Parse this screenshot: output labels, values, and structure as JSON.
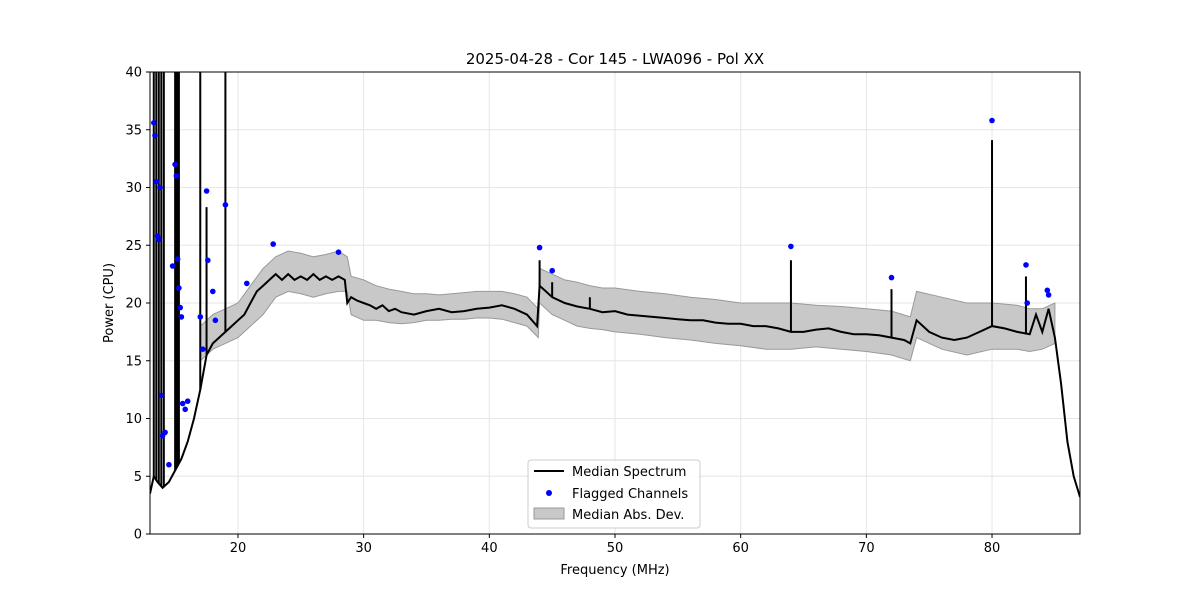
{
  "chart_data": {
    "type": "line",
    "title": "2025-04-28 - Cor 145 - LWA096 - Pol XX",
    "xlabel": "Frequency (MHz)",
    "ylabel": "Power (CPU)",
    "xlim": [
      13,
      87
    ],
    "ylim": [
      0,
      40
    ],
    "xticks": [
      "20",
      "30",
      "40",
      "50",
      "60",
      "70",
      "80"
    ],
    "yticks": [
      "0",
      "5",
      "10",
      "15",
      "20",
      "25",
      "30",
      "35",
      "40"
    ],
    "grid": true,
    "legend_position": "bottom-center",
    "colors": {
      "median": "#000000",
      "flagged": "#0000ff",
      "mad_fill": "#c8c8c8",
      "mad_edge": "#999999",
      "grid": "#e6e6e6"
    },
    "series": [
      {
        "name": "Median Spectrum",
        "kind": "line",
        "x": [
          13.0,
          13.3,
          13.6,
          14.0,
          14.5,
          15.0,
          15.5,
          16.0,
          16.5,
          17.0,
          17.5,
          18.0,
          18.5,
          19.0,
          19.5,
          20.0,
          20.5,
          21.0,
          21.5,
          22.0,
          22.5,
          23.0,
          23.5,
          24.0,
          24.5,
          25.0,
          25.5,
          26.0,
          26.5,
          27.0,
          27.5,
          28.0,
          28.5,
          28.7,
          29.0,
          29.5,
          30.0,
          30.5,
          31.0,
          31.5,
          32.0,
          32.5,
          33.0,
          34.0,
          35.0,
          36.0,
          37.0,
          38.0,
          39.0,
          40.0,
          41.0,
          42.0,
          43.0,
          43.8,
          44.0,
          44.5,
          45.0,
          46.0,
          47.0,
          48.0,
          49.0,
          50.0,
          51.0,
          52.0,
          53.0,
          54.0,
          55.0,
          56.0,
          57.0,
          58.0,
          59.0,
          60.0,
          61.0,
          62.0,
          63.0,
          64.0,
          65.0,
          66.0,
          67.0,
          68.0,
          69.0,
          70.0,
          71.0,
          72.0,
          73.0,
          73.5,
          74.0,
          75.0,
          76.0,
          77.0,
          78.0,
          79.0,
          80.0,
          81.0,
          82.0,
          83.0,
          83.5,
          84.0,
          84.5,
          85.0,
          85.5,
          86.0,
          86.5,
          87.0
        ],
        "y": [
          3.5,
          5.0,
          4.5,
          4.0,
          4.5,
          5.5,
          6.5,
          8.0,
          10.0,
          12.5,
          15.5,
          16.5,
          17.0,
          17.5,
          18.0,
          18.5,
          19.0,
          20.0,
          21.0,
          21.5,
          22.0,
          22.5,
          22.0,
          22.5,
          22.0,
          22.3,
          22.0,
          22.5,
          22.0,
          22.3,
          22.0,
          22.3,
          22.0,
          20.0,
          20.5,
          20.2,
          20.0,
          19.8,
          19.5,
          19.8,
          19.3,
          19.5,
          19.2,
          19.0,
          19.3,
          19.5,
          19.2,
          19.3,
          19.5,
          19.6,
          19.8,
          19.5,
          19.0,
          18.0,
          21.5,
          21.0,
          20.5,
          20.0,
          19.7,
          19.5,
          19.2,
          19.3,
          19.0,
          18.9,
          18.8,
          18.7,
          18.6,
          18.5,
          18.5,
          18.3,
          18.2,
          18.2,
          18.0,
          18.0,
          17.8,
          17.5,
          17.5,
          17.7,
          17.8,
          17.5,
          17.3,
          17.3,
          17.2,
          17.0,
          16.8,
          16.5,
          18.5,
          17.5,
          17.0,
          16.8,
          17.0,
          17.5,
          18.0,
          17.8,
          17.5,
          17.3,
          19.0,
          17.5,
          19.5,
          17.0,
          13.0,
          8.0,
          5.0,
          3.2
        ]
      },
      {
        "name": "Flagged Channels",
        "kind": "points",
        "x": [
          13.3,
          13.4,
          13.5,
          13.6,
          13.7,
          13.8,
          13.9,
          14.0,
          14.2,
          14.5,
          14.8,
          15.0,
          15.1,
          15.2,
          15.3,
          15.4,
          15.5,
          15.6,
          15.8,
          16.0,
          17.0,
          17.2,
          17.5,
          17.6,
          18.0,
          18.2,
          19.0,
          20.7,
          22.8,
          28.0,
          44.0,
          45.0,
          64.0,
          72.0,
          80.0,
          82.7,
          82.8,
          84.4,
          84.5
        ],
        "y": [
          35.6,
          34.5,
          30.5,
          25.8,
          25.5,
          30.0,
          12.0,
          8.5,
          8.8,
          6.0,
          23.2,
          32.0,
          31.0,
          23.8,
          21.3,
          19.6,
          18.8,
          11.3,
          10.8,
          11.5,
          18.8,
          16.0,
          29.7,
          23.7,
          21.0,
          18.5,
          28.5,
          21.7,
          25.1,
          24.4,
          24.8,
          22.8,
          24.9,
          22.2,
          35.8,
          23.3,
          20.0,
          21.1,
          20.7
        ]
      },
      {
        "name": "Median Abs. Dev.",
        "kind": "band",
        "x": [
          17.0,
          18.0,
          19.0,
          20.0,
          21.0,
          22.0,
          23.0,
          24.0,
          25.0,
          26.0,
          27.0,
          28.0,
          28.7,
          29.0,
          30.0,
          31.0,
          32.0,
          33.0,
          34.0,
          35.0,
          36.0,
          37.0,
          38.0,
          39.0,
          40.0,
          41.0,
          42.0,
          43.0,
          43.9,
          44.0,
          45.0,
          46.0,
          47.0,
          48.0,
          49.0,
          50.0,
          52.0,
          54.0,
          56.0,
          58.0,
          60.0,
          62.0,
          64.0,
          66.0,
          68.0,
          70.0,
          72.0,
          73.5,
          74.0,
          76.0,
          78.0,
          80.0,
          82.0,
          83.0,
          84.0,
          85.0
        ],
        "low": [
          15.0,
          16.0,
          16.5,
          17.0,
          18.0,
          19.0,
          20.5,
          21.0,
          20.8,
          20.5,
          20.8,
          21.0,
          21.0,
          19.0,
          18.5,
          18.5,
          18.3,
          18.2,
          18.3,
          18.5,
          18.5,
          18.6,
          18.6,
          18.7,
          18.7,
          18.6,
          18.3,
          18.0,
          17.0,
          20.0,
          19.0,
          18.5,
          18.0,
          17.8,
          17.7,
          17.5,
          17.3,
          17.0,
          16.8,
          16.5,
          16.3,
          16.0,
          16.0,
          16.2,
          16.0,
          15.8,
          15.5,
          15.0,
          17.0,
          16.0,
          15.5,
          16.0,
          16.0,
          15.8,
          16.0,
          16.5
        ],
        "high": [
          18.0,
          19.0,
          19.5,
          20.0,
          21.5,
          23.0,
          24.0,
          24.5,
          24.3,
          24.0,
          24.2,
          24.5,
          24.0,
          22.3,
          22.0,
          21.5,
          21.2,
          21.0,
          20.8,
          20.8,
          20.7,
          20.8,
          20.9,
          21.0,
          21.0,
          21.0,
          20.8,
          20.5,
          19.5,
          23.0,
          22.5,
          22.0,
          21.8,
          21.5,
          21.3,
          21.3,
          21.0,
          20.8,
          20.5,
          20.3,
          20.0,
          20.0,
          20.0,
          19.8,
          19.7,
          19.5,
          19.3,
          18.8,
          21.0,
          20.5,
          20.0,
          20.0,
          19.8,
          19.5,
          19.5,
          20.0
        ]
      }
    ],
    "spikes": [
      {
        "x": 17.0,
        "top": 40
      },
      {
        "x": 17.5,
        "top": 28.3
      },
      {
        "x": 19.0,
        "top": 40
      },
      {
        "x": 44.0,
        "top": 23.7
      },
      {
        "x": 45.0,
        "top": 21.8
      },
      {
        "x": 48.0,
        "top": 20.5
      },
      {
        "x": 64.0,
        "top": 23.7
      },
      {
        "x": 72.0,
        "top": 21.2
      },
      {
        "x": 80.0,
        "top": 34.1
      },
      {
        "x": 82.7,
        "top": 22.3
      }
    ],
    "rfi_spikes": [
      13.3,
      13.5,
      13.7,
      13.9,
      14.1,
      15.0,
      15.1,
      15.2,
      15.3
    ]
  }
}
